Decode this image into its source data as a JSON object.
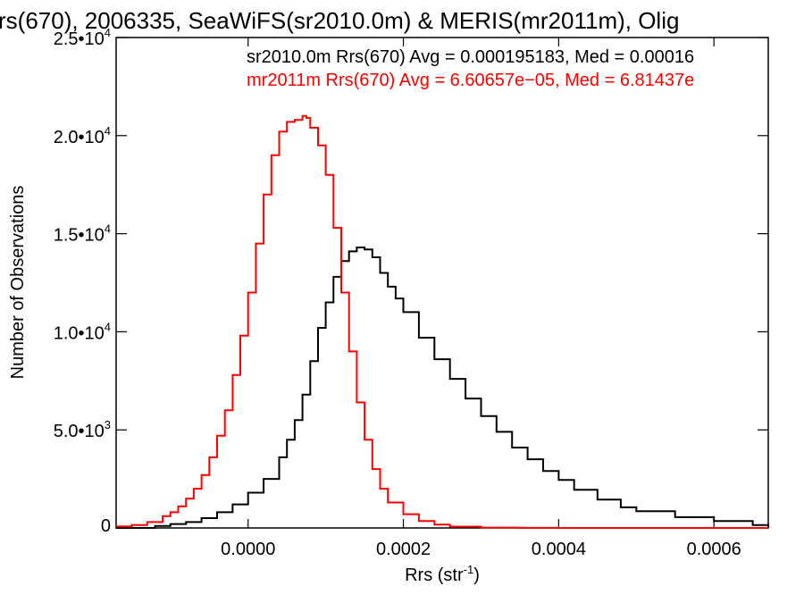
{
  "chart_data": {
    "type": "line",
    "title": "rs(670), 2006335, SeaWiFS(sr2010.0m) & MERIS(mr2011m), Olig",
    "xlabel": "Rrs (str",
    "xlabel_sup": "-1",
    "xlabel_end": ")",
    "ylabel": "Number of Observations",
    "xlim": [
      -0.00017,
      0.00067
    ],
    "ylim": [
      0,
      25000
    ],
    "grid": false,
    "x_ticks": [
      {
        "value": 0.0,
        "label": "0.0000"
      },
      {
        "value": 0.0002,
        "label": "0.0002"
      },
      {
        "value": 0.0004,
        "label": "0.0004"
      },
      {
        "value": 0.0006,
        "label": "0.0006"
      }
    ],
    "y_ticks": [
      {
        "value": 0,
        "mant": "0",
        "exp": ""
      },
      {
        "value": 5000,
        "mant": "5.0•10",
        "exp": "3"
      },
      {
        "value": 10000,
        "mant": "1.0•10",
        "exp": "4"
      },
      {
        "value": 15000,
        "mant": "1.5•10",
        "exp": "4"
      },
      {
        "value": 20000,
        "mant": "2.0•10",
        "exp": "4"
      },
      {
        "value": 25000,
        "mant": "2.5•10",
        "exp": "4"
      }
    ],
    "annotations": [
      {
        "text": "sr2010.0m Rrs(670) Avg = 0.000195183, Med = 0.00016",
        "color": "#000000"
      },
      {
        "text": "mr2011m Rrs(670) Avg = 6.60657e−05, Med = 6.81437e",
        "color": "#ff0000"
      }
    ],
    "series": [
      {
        "color": "#000000",
        "x": [
          -0.00017,
          -0.00014,
          -0.00012,
          -0.0001,
          -8e-05,
          -6e-05,
          -4e-05,
          -2e-05,
          0.0,
          2e-05,
          4e-05,
          5e-05,
          6e-05,
          7e-05,
          8e-05,
          9e-05,
          0.0001,
          0.00011,
          0.00012,
          0.00013,
          0.00014,
          0.00015,
          0.00016,
          0.00017,
          0.00018,
          0.00019,
          0.0002,
          0.00022,
          0.00024,
          0.00026,
          0.00028,
          0.0003,
          0.00032,
          0.00034,
          0.00036,
          0.00038,
          0.0004,
          0.00042,
          0.00045,
          0.00048,
          0.0005,
          0.00055,
          0.0006,
          0.00065,
          0.00067
        ],
        "y": [
          0,
          0,
          100,
          200,
          300,
          500,
          800,
          1200,
          1800,
          2500,
          3600,
          4500,
          5500,
          6800,
          8500,
          10200,
          11500,
          12800,
          13600,
          14100,
          14300,
          14200,
          13800,
          13000,
          12300,
          11700,
          11000,
          9700,
          8600,
          7600,
          6600,
          5700,
          4900,
          4100,
          3500,
          2900,
          2450,
          1950,
          1450,
          1050,
          850,
          550,
          350,
          150,
          50
        ]
      },
      {
        "color": "#ff0000",
        "x": [
          -0.00017,
          -0.00015,
          -0.00013,
          -0.00011,
          -0.0001,
          -9e-05,
          -8e-05,
          -7e-05,
          -6e-05,
          -5e-05,
          -4e-05,
          -3e-05,
          -2e-05,
          -1e-05,
          0.0,
          1e-05,
          2e-05,
          3e-05,
          4e-05,
          5e-05,
          6e-05,
          7e-05,
          7.5e-05,
          8e-05,
          9e-05,
          0.0001,
          0.00011,
          0.00012,
          0.00013,
          0.00014,
          0.00015,
          0.00016,
          0.00017,
          0.00018,
          0.0002,
          0.00022,
          0.00024,
          0.00026,
          0.0003,
          0.00035,
          0.0004,
          0.0005,
          0.0006,
          0.00067
        ],
        "y": [
          80,
          150,
          300,
          600,
          800,
          1100,
          1500,
          2000,
          2700,
          3600,
          4700,
          6000,
          7800,
          9800,
          12000,
          14500,
          17000,
          19000,
          20200,
          20700,
          20800,
          21000,
          20900,
          20400,
          19500,
          18000,
          15300,
          12000,
          9000,
          6400,
          4500,
          3000,
          2000,
          1300,
          700,
          350,
          170,
          70,
          20,
          5,
          0,
          0,
          0,
          0
        ]
      }
    ]
  }
}
